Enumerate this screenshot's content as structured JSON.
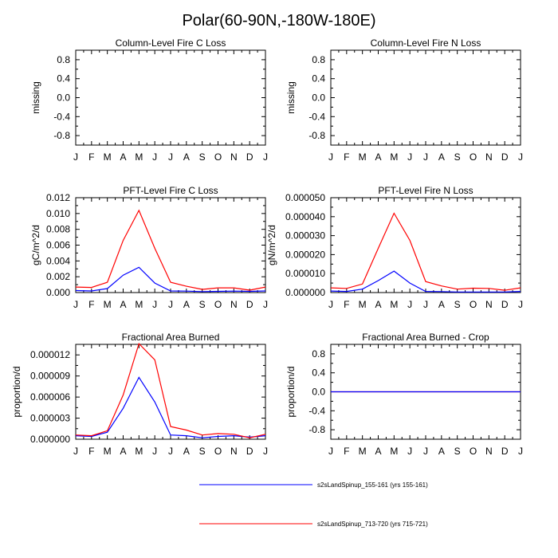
{
  "title": "Polar(60-90N,-180W-180E)",
  "chart_data": [
    {
      "type": "line",
      "title": "Column-Level Fire C Loss",
      "ylabel": "missing",
      "ylim": [
        -1.0,
        1.0
      ],
      "yticks": [
        -0.8,
        -0.4,
        0.0,
        0.4,
        0.8
      ],
      "ytick_labels": [
        "-0.8",
        "-0.4",
        "0.0",
        "0.4",
        "0.8"
      ],
      "x_labels": [
        "J",
        "F",
        "M",
        "A",
        "M",
        "J",
        "J",
        "A",
        "S",
        "O",
        "N",
        "D",
        "J"
      ],
      "series": []
    },
    {
      "type": "line",
      "title": "Column-Level Fire N Loss",
      "ylabel": "missing",
      "ylim": [
        -1.0,
        1.0
      ],
      "yticks": [
        -0.8,
        -0.4,
        0.0,
        0.4,
        0.8
      ],
      "ytick_labels": [
        "-0.8",
        "-0.4",
        "0.0",
        "0.4",
        "0.8"
      ],
      "x_labels": [
        "J",
        "F",
        "M",
        "A",
        "M",
        "J",
        "J",
        "A",
        "S",
        "O",
        "N",
        "D",
        "J"
      ],
      "series": []
    },
    {
      "type": "line",
      "title": "PFT-Level Fire C Loss",
      "ylabel": "gC/m^2/d",
      "ylim": [
        0.0,
        0.012
      ],
      "yticks": [
        0.0,
        0.002,
        0.004,
        0.006,
        0.008,
        0.01,
        0.012
      ],
      "ytick_labels": [
        "0.000",
        "0.002",
        "0.004",
        "0.006",
        "0.008",
        "0.010",
        "0.012"
      ],
      "x_labels": [
        "J",
        "F",
        "M",
        "A",
        "M",
        "J",
        "J",
        "A",
        "S",
        "O",
        "N",
        "D",
        "J"
      ],
      "series": [
        {
          "name": "s2sLandSpinup_155-161 (yrs 155-161)",
          "color": "#0000ff",
          "values": [
            0.00025,
            0.0002,
            0.0005,
            0.0022,
            0.0032,
            0.0012,
            0.0002,
            0.00018,
            0.00012,
            0.00015,
            0.00018,
            0.00015,
            0.0002
          ]
        },
        {
          "name": "s2sLandSpinup_713-720 (yrs 715-721)",
          "color": "#ff0000",
          "values": [
            0.0007,
            0.00065,
            0.0013,
            0.0066,
            0.0104,
            0.0056,
            0.0013,
            0.0008,
            0.0004,
            0.0006,
            0.0006,
            0.0003,
            0.0007
          ]
        }
      ]
    },
    {
      "type": "line",
      "title": "PFT-Level Fire N Loss",
      "ylabel": "gN/m^2/d",
      "ylim": [
        0.0,
        5e-05
      ],
      "yticks": [
        0.0,
        1e-05,
        2e-05,
        3e-05,
        4e-05,
        5e-05
      ],
      "ytick_labels": [
        "0.000000",
        "0.000010",
        "0.000020",
        "0.000030",
        "0.000040",
        "0.000050"
      ],
      "x_labels": [
        "J",
        "F",
        "M",
        "A",
        "M",
        "J",
        "J",
        "A",
        "S",
        "O",
        "N",
        "D",
        "J"
      ],
      "series": [
        {
          "name": "s2sLandSpinup_155-161 (yrs 155-161)",
          "color": "#0000ff",
          "values": [
            8e-07,
            6e-07,
            1.8e-06,
            6.3e-06,
            1.13e-05,
            5e-06,
            6e-07,
            5e-07,
            3e-07,
            3e-07,
            3e-07,
            3e-07,
            6e-07
          ]
        },
        {
          "name": "s2sLandSpinup_713-720 (yrs 715-721)",
          "color": "#ff0000",
          "values": [
            2.5e-06,
            2.2e-06,
            4.5e-06,
            2.33e-05,
            4.18e-05,
            2.75e-05,
            5.8e-06,
            3.5e-06,
            1.8e-06,
            2.3e-06,
            2.2e-06,
            1.2e-06,
            2.5e-06
          ]
        }
      ]
    },
    {
      "type": "line",
      "title": "Fractional Area Burned",
      "ylabel": "proportion/d",
      "ylim": [
        0.0,
        1.35e-05
      ],
      "yticks": [
        0.0,
        3e-06,
        6e-06,
        9e-06,
        1.2e-05
      ],
      "ytick_labels": [
        "0.000000",
        "0.000003",
        "0.000006",
        "0.000009",
        "0.000012"
      ],
      "x_labels": [
        "J",
        "F",
        "M",
        "A",
        "M",
        "J",
        "J",
        "A",
        "S",
        "O",
        "N",
        "D",
        "J"
      ],
      "series": [
        {
          "name": "s2sLandSpinup_155-161 (yrs 155-161)",
          "color": "#0000ff",
          "values": [
            5e-07,
            4e-07,
            1e-06,
            4.4e-06,
            8.8e-06,
            5.3e-06,
            6e-07,
            5e-07,
            2e-07,
            4e-07,
            5e-07,
            3e-07,
            5e-07
          ]
        },
        {
          "name": "s2sLandSpinup_713-720 (yrs 715-721)",
          "color": "#ff0000",
          "values": [
            6e-07,
            5e-07,
            1.2e-06,
            6.3e-06,
            1.36e-05,
            1.13e-05,
            1.8e-06,
            1.3e-06,
            6e-07,
            8e-07,
            7e-07,
            2e-07,
            7e-07
          ]
        }
      ]
    },
    {
      "type": "line",
      "title": "Fractional Area Burned - Crop",
      "ylabel": "proportion/d",
      "ylim": [
        -1.0,
        1.0
      ],
      "yticks": [
        -0.8,
        -0.4,
        0.0,
        0.4,
        0.8
      ],
      "ytick_labels": [
        "-0.8",
        "-0.4",
        "0.0",
        "0.4",
        "0.8"
      ],
      "x_labels": [
        "J",
        "F",
        "M",
        "A",
        "M",
        "J",
        "J",
        "A",
        "S",
        "O",
        "N",
        "D",
        "J"
      ],
      "series": [
        {
          "name": "s2sLandSpinup_713-720 (yrs 715-721)",
          "color": "#ff0000",
          "values": [
            0,
            0,
            0,
            0,
            0,
            0,
            0,
            0,
            0,
            0,
            0,
            0,
            0
          ]
        },
        {
          "name": "s2sLandSpinup_155-161 (yrs 155-161)",
          "color": "#0000ff",
          "values": [
            0,
            0,
            0,
            0,
            0,
            0,
            0,
            0,
            0,
            0,
            0,
            0,
            0
          ]
        }
      ]
    }
  ],
  "legend": [
    {
      "label": "s2sLandSpinup_155-161 (yrs 155-161)",
      "color": "#0000ff"
    },
    {
      "label": "s2sLandSpinup_713-720 (yrs 715-721)",
      "color": "#ff0000"
    }
  ]
}
